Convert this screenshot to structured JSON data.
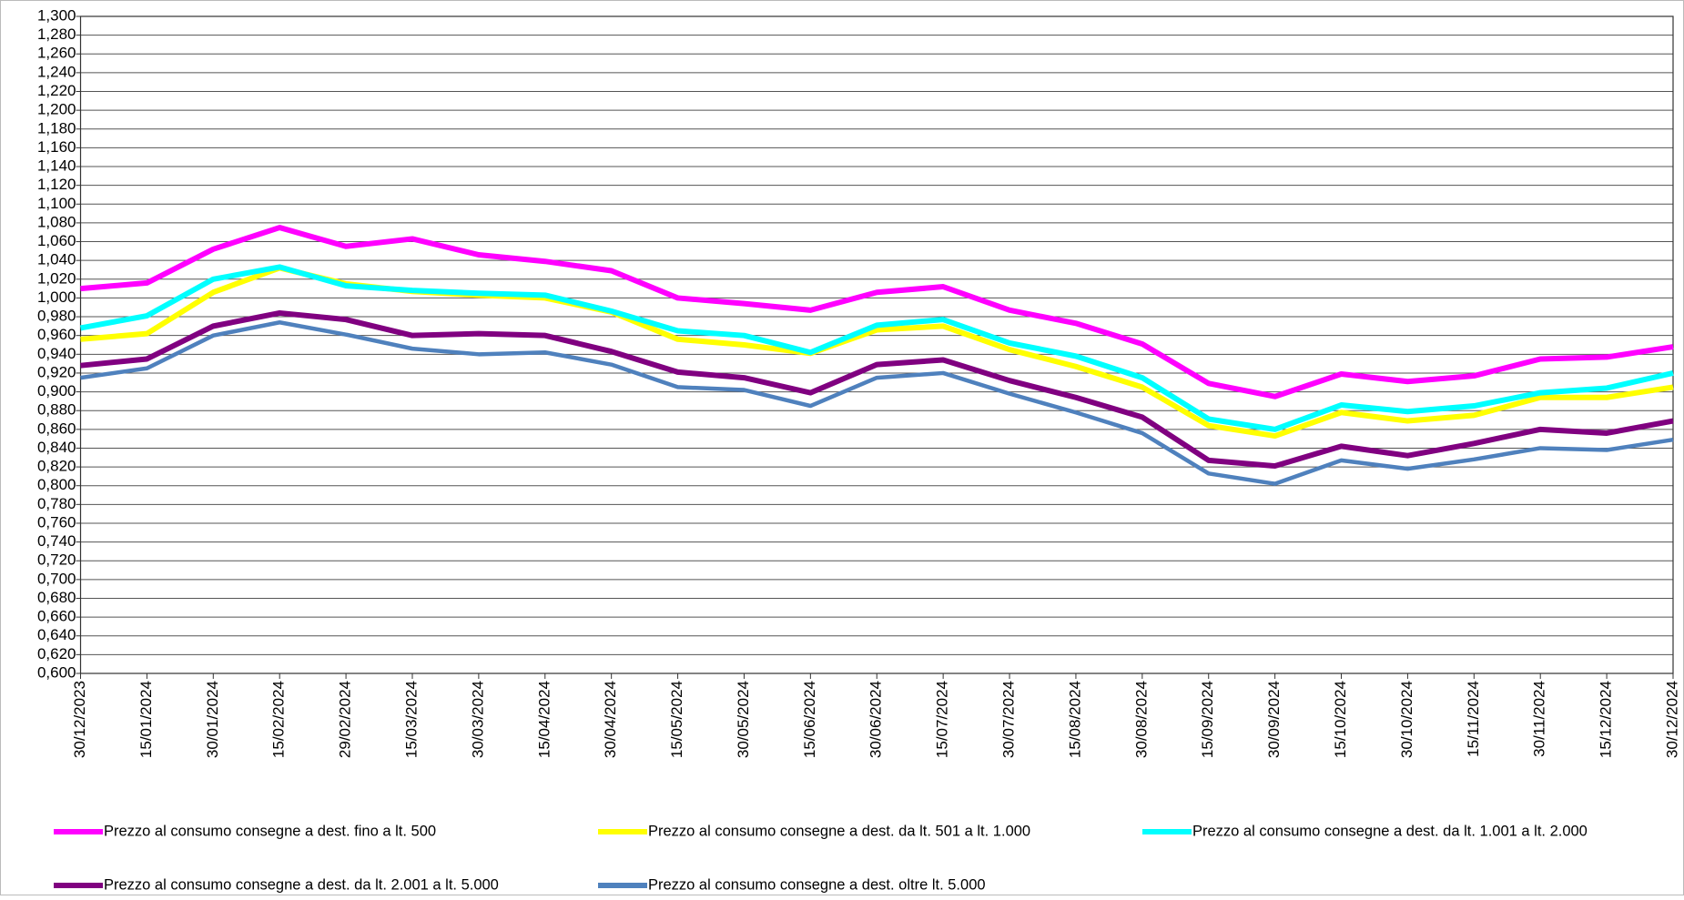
{
  "chart_data": {
    "type": "line",
    "categories": [
      "30/12/2023",
      "15/01/2024",
      "30/01/2024",
      "15/02/2024",
      "29/02/2024",
      "15/03/2024",
      "30/03/2024",
      "15/04/2024",
      "30/04/2024",
      "15/05/2024",
      "30/05/2024",
      "15/06/2024",
      "30/06/2024",
      "15/07/2024",
      "30/07/2024",
      "15/08/2024",
      "30/08/2024",
      "15/09/2024",
      "30/09/2024",
      "15/10/2024",
      "30/10/2024",
      "15/11/2024",
      "30/11/2024",
      "15/12/2024",
      "30/12/2024"
    ],
    "series": [
      {
        "name": "Prezzo al consumo consegne a dest. fino a lt. 500",
        "color": "#ff00ff",
        "values": [
          1.01,
          1.016,
          1.052,
          1.075,
          1.055,
          1.063,
          1.046,
          1.039,
          1.029,
          1.0,
          0.994,
          0.987,
          1.006,
          1.012,
          0.987,
          0.973,
          0.951,
          0.909,
          0.895,
          0.919,
          0.911,
          0.917,
          0.935,
          0.937,
          0.948
        ]
      },
      {
        "name": "Prezzo al consumo consegne a dest. da lt. 501 a lt. 1.000",
        "color": "#ffff00",
        "values": [
          0.956,
          0.962,
          1.006,
          1.032,
          1.015,
          1.007,
          1.003,
          1.0,
          0.985,
          0.956,
          0.95,
          0.941,
          0.966,
          0.97,
          0.945,
          0.927,
          0.905,
          0.864,
          0.853,
          0.878,
          0.869,
          0.875,
          0.894,
          0.894,
          0.905
        ]
      },
      {
        "name": "Prezzo al consumo consegne a dest. da lt. 1.001 a lt. 2.000",
        "color": "#00ffff",
        "values": [
          0.968,
          0.981,
          1.02,
          1.033,
          1.013,
          1.008,
          1.005,
          1.003,
          0.986,
          0.965,
          0.96,
          0.942,
          0.971,
          0.977,
          0.952,
          0.938,
          0.915,
          0.871,
          0.86,
          0.886,
          0.879,
          0.885,
          0.899,
          0.904,
          0.92
        ]
      },
      {
        "name": "Prezzo al consumo consegne a dest. da lt. 2.001 a lt. 5.000",
        "color": "#800080",
        "values": [
          0.928,
          0.935,
          0.97,
          0.984,
          0.977,
          0.96,
          0.962,
          0.96,
          0.943,
          0.921,
          0.915,
          0.899,
          0.929,
          0.934,
          0.912,
          0.894,
          0.873,
          0.827,
          0.821,
          0.842,
          0.832,
          0.845,
          0.86,
          0.856,
          0.869
        ]
      },
      {
        "name": "Prezzo al consumo consegne a dest. oltre lt. 5.000",
        "color": "#4f81bd",
        "values": [
          0.915,
          0.925,
          0.96,
          0.974,
          0.961,
          0.946,
          0.94,
          0.942,
          0.929,
          0.905,
          0.902,
          0.885,
          0.915,
          0.92,
          0.898,
          0.878,
          0.856,
          0.813,
          0.802,
          0.827,
          0.818,
          0.828,
          0.84,
          0.838,
          0.849
        ]
      }
    ],
    "ylim": [
      0.6,
      1.3
    ],
    "yticks": [
      {
        "value": 0.6,
        "label": "0,600"
      },
      {
        "value": 0.62,
        "label": "0,620"
      },
      {
        "value": 0.64,
        "label": "0,640"
      },
      {
        "value": 0.66,
        "label": "0,660"
      },
      {
        "value": 0.68,
        "label": "0,680"
      },
      {
        "value": 0.7,
        "label": "0,700"
      },
      {
        "value": 0.72,
        "label": "0,720"
      },
      {
        "value": 0.74,
        "label": "0,740"
      },
      {
        "value": 0.76,
        "label": "0,760"
      },
      {
        "value": 0.78,
        "label": "0,780"
      },
      {
        "value": 0.8,
        "label": "0,800"
      },
      {
        "value": 0.82,
        "label": "0,820"
      },
      {
        "value": 0.84,
        "label": "0,840"
      },
      {
        "value": 0.86,
        "label": "0,860"
      },
      {
        "value": 0.88,
        "label": "0,880"
      },
      {
        "value": 0.9,
        "label": "0,900"
      },
      {
        "value": 0.92,
        "label": "0,920"
      },
      {
        "value": 0.94,
        "label": "0,940"
      },
      {
        "value": 0.96,
        "label": "0,960"
      },
      {
        "value": 0.98,
        "label": "0,980"
      },
      {
        "value": 1.0,
        "label": "1,000"
      },
      {
        "value": 1.02,
        "label": "1,020"
      },
      {
        "value": 1.04,
        "label": "1,040"
      },
      {
        "value": 1.06,
        "label": "1,060"
      },
      {
        "value": 1.08,
        "label": "1,080"
      },
      {
        "value": 1.1,
        "label": "1,100"
      },
      {
        "value": 1.12,
        "label": "1,120"
      },
      {
        "value": 1.14,
        "label": "1,140"
      },
      {
        "value": 1.16,
        "label": "1,160"
      },
      {
        "value": 1.18,
        "label": "1,180"
      },
      {
        "value": 1.2,
        "label": "1,200"
      },
      {
        "value": 1.22,
        "label": "1,220"
      },
      {
        "value": 1.24,
        "label": "1,240"
      },
      {
        "value": 1.26,
        "label": "1,260"
      },
      {
        "value": 1.28,
        "label": "1,280"
      },
      {
        "value": 1.3,
        "label": "1,300"
      }
    ],
    "grid": true
  }
}
